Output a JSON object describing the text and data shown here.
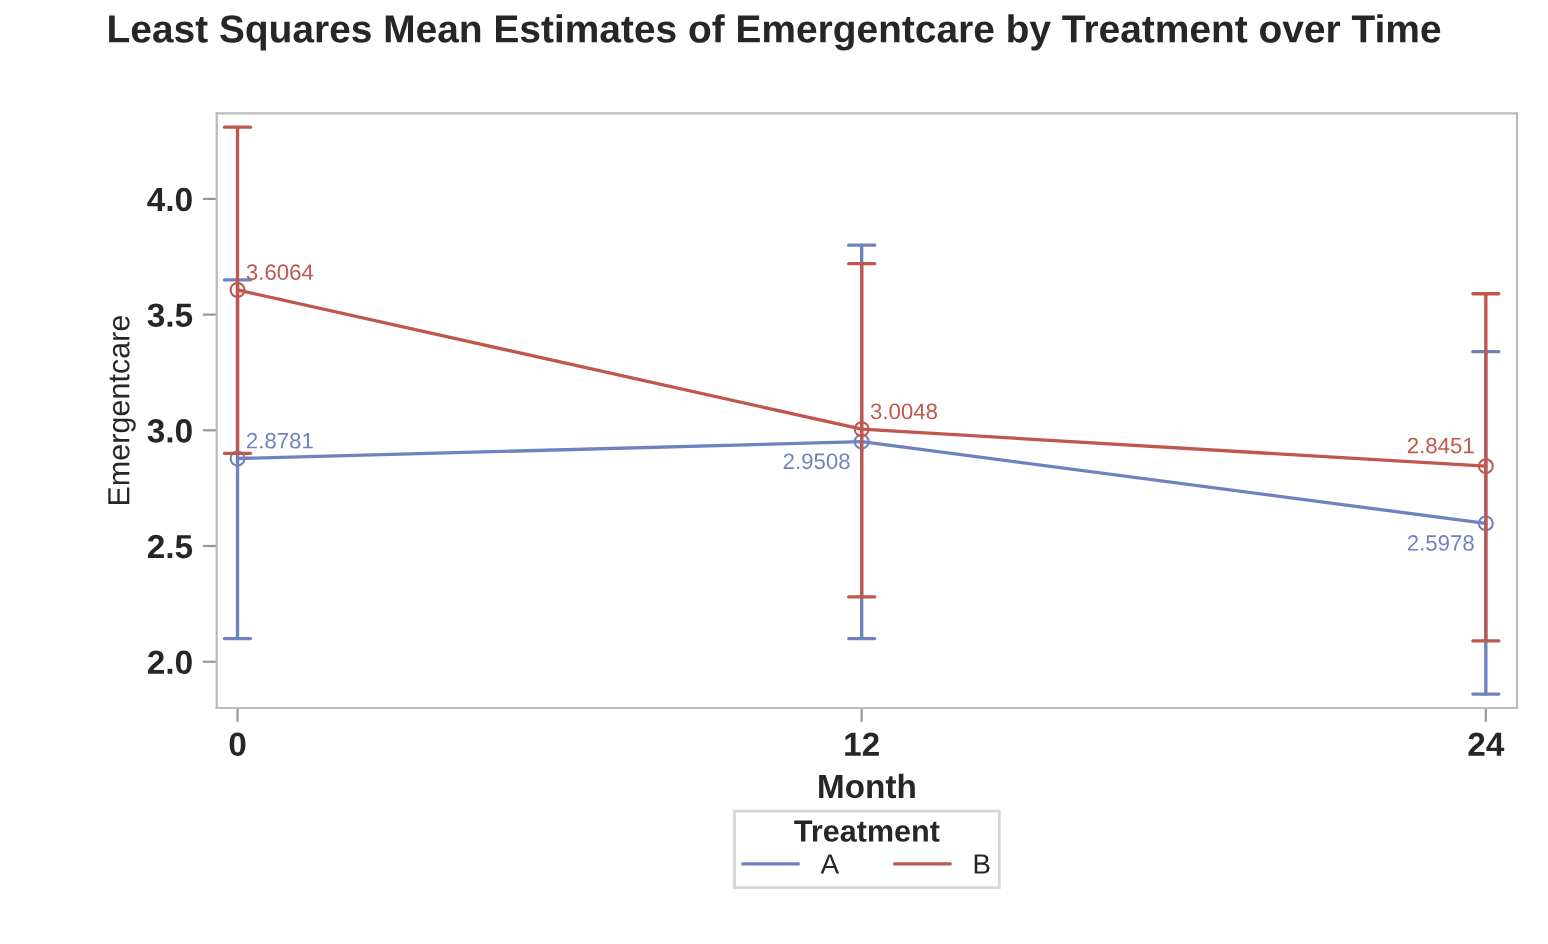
{
  "chart_data": {
    "type": "line",
    "title": "Least Squares Mean Estimates of Emergentcare by Treatment over Time",
    "xlabel": "Month",
    "ylabel": "Emergentcare",
    "legend_title": "Treatment",
    "x": [
      0,
      12,
      24
    ],
    "series": [
      {
        "name": "A",
        "color": "#6f82c0",
        "values": [
          2.8781,
          2.9508,
          2.5978
        ],
        "errors": [
          [
            2.1,
            3.65
          ],
          [
            2.1,
            3.8
          ],
          [
            1.86,
            3.34
          ]
        ]
      },
      {
        "name": "B",
        "color": "#c0574f",
        "values": [
          3.6064,
          3.0048,
          2.8451
        ],
        "errors": [
          [
            2.9,
            4.31
          ],
          [
            2.28,
            3.72
          ],
          [
            2.09,
            3.59
          ]
        ]
      }
    ],
    "xlim": [
      -0.4,
      24.6
    ],
    "xticks": [
      0,
      12,
      24
    ],
    "ylim": [
      1.8,
      4.37
    ],
    "yticks": [
      {
        "value": 2,
        "label": "2.0"
      },
      2.5,
      {
        "value": 3,
        "label": "3.0"
      },
      3.5,
      {
        "value": 4,
        "label": "4.0"
      }
    ],
    "data_labels": true,
    "marker": "circle",
    "line_style": "solid",
    "grid": false,
    "legend": "bottom"
  }
}
